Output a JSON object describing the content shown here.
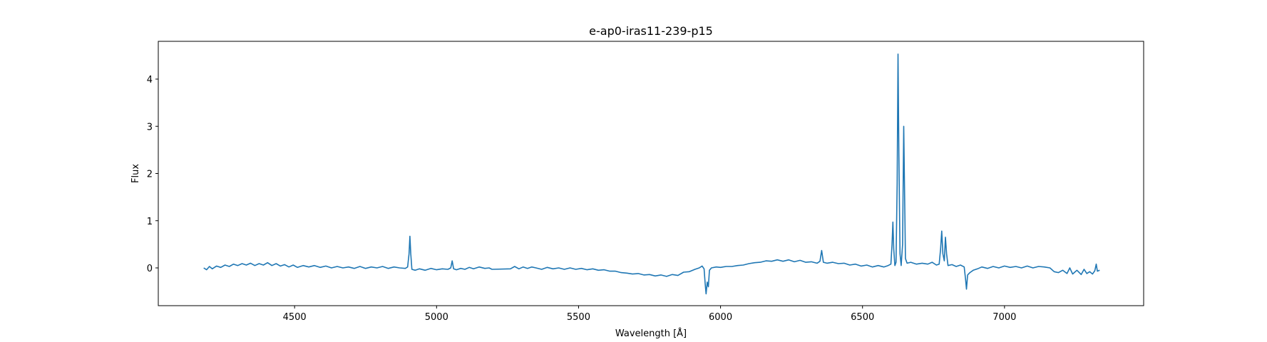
{
  "chart_data": {
    "type": "line",
    "title": "e-ap0-iras11-239-p15",
    "xlabel": "Wavelength [Å]",
    "ylabel": "Flux",
    "xlim": [
      4020,
      7490
    ],
    "ylim": [
      -0.8,
      4.8
    ],
    "xticks": [
      4500,
      5000,
      5500,
      6000,
      6500,
      7000
    ],
    "yticks": [
      0,
      1,
      2,
      3,
      4
    ],
    "grid": false,
    "legend": "none",
    "series": [
      {
        "color": "#1f77b4",
        "points": [
          [
            4180,
            0.0
          ],
          [
            4190,
            -0.04
          ],
          [
            4200,
            0.03
          ],
          [
            4210,
            -0.02
          ],
          [
            4225,
            0.04
          ],
          [
            4240,
            0.01
          ],
          [
            4255,
            0.06
          ],
          [
            4270,
            0.03
          ],
          [
            4285,
            0.08
          ],
          [
            4300,
            0.05
          ],
          [
            4315,
            0.09
          ],
          [
            4330,
            0.06
          ],
          [
            4345,
            0.1
          ],
          [
            4360,
            0.05
          ],
          [
            4375,
            0.09
          ],
          [
            4390,
            0.06
          ],
          [
            4405,
            0.11
          ],
          [
            4420,
            0.05
          ],
          [
            4435,
            0.09
          ],
          [
            4450,
            0.04
          ],
          [
            4465,
            0.07
          ],
          [
            4480,
            0.02
          ],
          [
            4495,
            0.06
          ],
          [
            4510,
            0.01
          ],
          [
            4530,
            0.05
          ],
          [
            4550,
            0.02
          ],
          [
            4570,
            0.05
          ],
          [
            4590,
            0.01
          ],
          [
            4610,
            0.04
          ],
          [
            4630,
            0.0
          ],
          [
            4650,
            0.03
          ],
          [
            4670,
            0.0
          ],
          [
            4690,
            0.02
          ],
          [
            4710,
            -0.01
          ],
          [
            4730,
            0.03
          ],
          [
            4750,
            -0.01
          ],
          [
            4770,
            0.02
          ],
          [
            4790,
            0.0
          ],
          [
            4810,
            0.03
          ],
          [
            4830,
            -0.01
          ],
          [
            4850,
            0.02
          ],
          [
            4870,
            0.0
          ],
          [
            4890,
            -0.01
          ],
          [
            4898,
            0.02
          ],
          [
            4903,
            0.3
          ],
          [
            4906,
            0.67
          ],
          [
            4909,
            0.3
          ],
          [
            4913,
            -0.03
          ],
          [
            4925,
            -0.05
          ],
          [
            4940,
            -0.02
          ],
          [
            4960,
            -0.05
          ],
          [
            4980,
            -0.01
          ],
          [
            5000,
            -0.04
          ],
          [
            5020,
            -0.02
          ],
          [
            5040,
            -0.03
          ],
          [
            5050,
            0.0
          ],
          [
            5055,
            0.15
          ],
          [
            5060,
            -0.02
          ],
          [
            5070,
            -0.04
          ],
          [
            5085,
            -0.01
          ],
          [
            5100,
            -0.03
          ],
          [
            5115,
            0.01
          ],
          [
            5130,
            -0.02
          ],
          [
            5150,
            0.02
          ],
          [
            5170,
            -0.01
          ],
          [
            5185,
            0.0
          ],
          [
            5195,
            -0.03
          ],
          [
            5260,
            -0.02
          ],
          [
            5275,
            0.03
          ],
          [
            5290,
            -0.02
          ],
          [
            5305,
            0.02
          ],
          [
            5320,
            -0.01
          ],
          [
            5335,
            0.02
          ],
          [
            5350,
            0.0
          ],
          [
            5370,
            -0.03
          ],
          [
            5390,
            0.01
          ],
          [
            5410,
            -0.02
          ],
          [
            5430,
            0.0
          ],
          [
            5450,
            -0.03
          ],
          [
            5470,
            0.0
          ],
          [
            5490,
            -0.03
          ],
          [
            5510,
            -0.01
          ],
          [
            5530,
            -0.04
          ],
          [
            5550,
            -0.02
          ],
          [
            5570,
            -0.05
          ],
          [
            5590,
            -0.04
          ],
          [
            5610,
            -0.07
          ],
          [
            5630,
            -0.07
          ],
          [
            5650,
            -0.1
          ],
          [
            5670,
            -0.11
          ],
          [
            5690,
            -0.13
          ],
          [
            5710,
            -0.12
          ],
          [
            5730,
            -0.15
          ],
          [
            5750,
            -0.14
          ],
          [
            5770,
            -0.17
          ],
          [
            5790,
            -0.15
          ],
          [
            5810,
            -0.18
          ],
          [
            5830,
            -0.14
          ],
          [
            5850,
            -0.16
          ],
          [
            5870,
            -0.09
          ],
          [
            5890,
            -0.08
          ],
          [
            5910,
            -0.03
          ],
          [
            5925,
            0.0
          ],
          [
            5935,
            0.04
          ],
          [
            5942,
            -0.02
          ],
          [
            5946,
            -0.35
          ],
          [
            5949,
            -0.55
          ],
          [
            5953,
            -0.3
          ],
          [
            5957,
            -0.4
          ],
          [
            5961,
            -0.05
          ],
          [
            5968,
            0.0
          ],
          [
            5985,
            0.02
          ],
          [
            6000,
            0.01
          ],
          [
            6020,
            0.03
          ],
          [
            6040,
            0.03
          ],
          [
            6060,
            0.05
          ],
          [
            6080,
            0.06
          ],
          [
            6100,
            0.09
          ],
          [
            6120,
            0.11
          ],
          [
            6140,
            0.12
          ],
          [
            6160,
            0.15
          ],
          [
            6180,
            0.14
          ],
          [
            6200,
            0.17
          ],
          [
            6220,
            0.14
          ],
          [
            6240,
            0.17
          ],
          [
            6260,
            0.13
          ],
          [
            6280,
            0.16
          ],
          [
            6300,
            0.12
          ],
          [
            6320,
            0.13
          ],
          [
            6340,
            0.1
          ],
          [
            6350,
            0.14
          ],
          [
            6356,
            0.37
          ],
          [
            6362,
            0.12
          ],
          [
            6375,
            0.1
          ],
          [
            6395,
            0.12
          ],
          [
            6415,
            0.09
          ],
          [
            6435,
            0.1
          ],
          [
            6455,
            0.06
          ],
          [
            6475,
            0.08
          ],
          [
            6495,
            0.04
          ],
          [
            6515,
            0.06
          ],
          [
            6535,
            0.02
          ],
          [
            6555,
            0.05
          ],
          [
            6575,
            0.02
          ],
          [
            6590,
            0.05
          ],
          [
            6600,
            0.08
          ],
          [
            6604,
            0.5
          ],
          [
            6607,
            0.97
          ],
          [
            6610,
            0.4
          ],
          [
            6614,
            0.05
          ],
          [
            6618,
            0.12
          ],
          [
            6622,
            1.8
          ],
          [
            6625,
            4.53
          ],
          [
            6628,
            2.4
          ],
          [
            6632,
            0.3
          ],
          [
            6636,
            0.05
          ],
          [
            6641,
            0.5
          ],
          [
            6645,
            3.0
          ],
          [
            6648,
            1.6
          ],
          [
            6651,
            0.2
          ],
          [
            6657,
            0.1
          ],
          [
            6670,
            0.12
          ],
          [
            6690,
            0.08
          ],
          [
            6710,
            0.1
          ],
          [
            6730,
            0.08
          ],
          [
            6745,
            0.12
          ],
          [
            6760,
            0.06
          ],
          [
            6770,
            0.08
          ],
          [
            6775,
            0.4
          ],
          [
            6779,
            0.78
          ],
          [
            6783,
            0.3
          ],
          [
            6788,
            0.15
          ],
          [
            6792,
            0.65
          ],
          [
            6796,
            0.3
          ],
          [
            6801,
            0.05
          ],
          [
            6815,
            0.07
          ],
          [
            6830,
            0.03
          ],
          [
            6845,
            0.06
          ],
          [
            6858,
            0.02
          ],
          [
            6863,
            -0.25
          ],
          [
            6866,
            -0.45
          ],
          [
            6870,
            -0.15
          ],
          [
            6878,
            -0.1
          ],
          [
            6890,
            -0.05
          ],
          [
            6905,
            -0.02
          ],
          [
            6920,
            0.02
          ],
          [
            6940,
            -0.01
          ],
          [
            6960,
            0.03
          ],
          [
            6980,
            0.0
          ],
          [
            7000,
            0.04
          ],
          [
            7020,
            0.01
          ],
          [
            7040,
            0.03
          ],
          [
            7060,
            0.0
          ],
          [
            7080,
            0.04
          ],
          [
            7100,
            0.0
          ],
          [
            7120,
            0.03
          ],
          [
            7140,
            0.02
          ],
          [
            7160,
            0.0
          ],
          [
            7175,
            -0.08
          ],
          [
            7190,
            -0.1
          ],
          [
            7205,
            -0.05
          ],
          [
            7220,
            -0.12
          ],
          [
            7230,
            0.0
          ],
          [
            7240,
            -0.13
          ],
          [
            7255,
            -0.05
          ],
          [
            7270,
            -0.14
          ],
          [
            7280,
            -0.03
          ],
          [
            7290,
            -0.12
          ],
          [
            7300,
            -0.08
          ],
          [
            7310,
            -0.13
          ],
          [
            7318,
            -0.06
          ],
          [
            7323,
            0.08
          ],
          [
            7327,
            -0.07
          ],
          [
            7335,
            -0.05
          ]
        ]
      }
    ]
  }
}
